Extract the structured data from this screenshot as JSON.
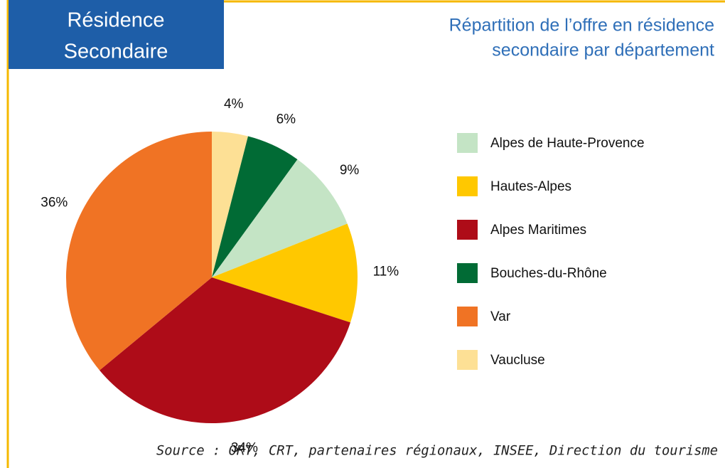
{
  "badge": [
    "Résidence",
    "Secondaire"
  ],
  "chart_data": {
    "type": "pie",
    "title": [
      "Répartition de l’offre en résidence",
      "secondaire par département"
    ],
    "categories": [
      "Alpes de Haute-Provence",
      "Hautes-Alpes",
      "Alpes Maritimes",
      "Bouches-du-Rhône",
      "Var",
      "Vaucluse"
    ],
    "values": [
      9,
      11,
      34,
      6,
      36,
      4
    ],
    "value_labels": [
      "9%",
      "11%",
      "34%",
      "6%",
      "36%",
      "4%"
    ],
    "colors": [
      "#c4e4c5",
      "#ffc800",
      "#ae0c18",
      "#016b35",
      "#f07324",
      "#fde095"
    ],
    "legend": "right"
  },
  "source": "Source : ORT, CRT, partenaires régionaux, INSEE, Direction du tourisme"
}
